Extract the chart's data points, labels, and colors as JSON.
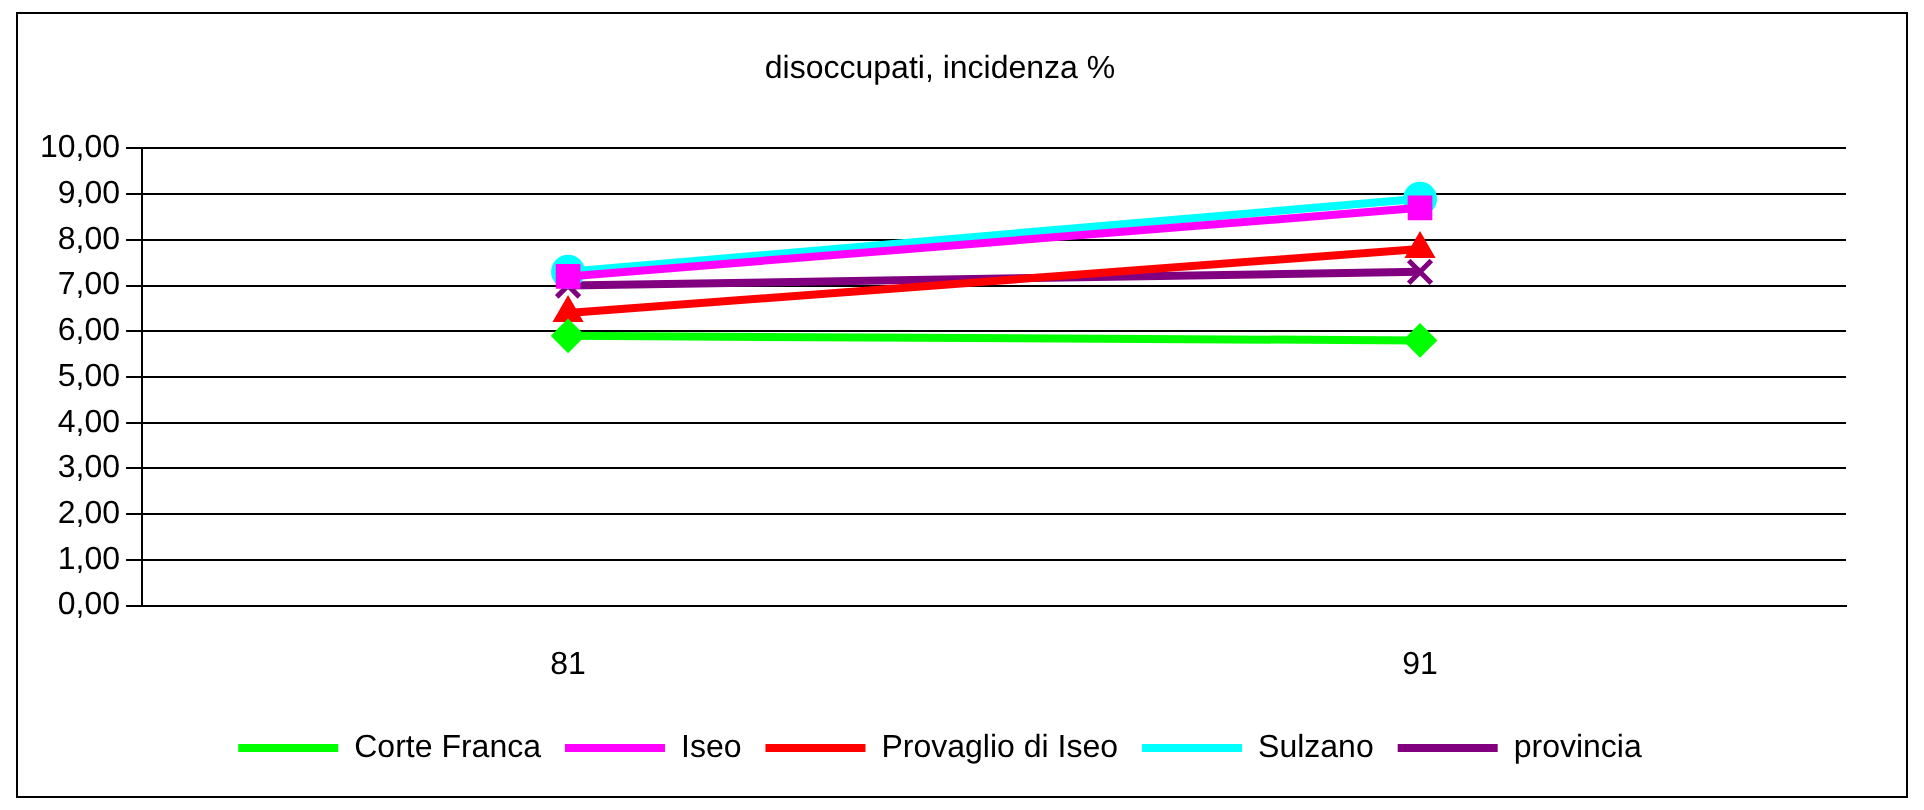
{
  "chart_data": {
    "type": "line",
    "title": "disoccupati, incidenza %",
    "categories": [
      "81",
      "91"
    ],
    "series": [
      {
        "name": "Corte Franca",
        "color": "#00ff00",
        "marker": "diamond",
        "values": [
          5.9,
          5.8
        ]
      },
      {
        "name": "Iseo",
        "color": "#ff00ff",
        "marker": "square",
        "values": [
          7.2,
          8.7
        ]
      },
      {
        "name": "Provaglio di Iseo",
        "color": "#ff0000",
        "marker": "triangle",
        "values": [
          6.4,
          7.8
        ]
      },
      {
        "name": "Sulzano",
        "color": "#00ffff",
        "marker": "circle",
        "values": [
          7.3,
          8.9
        ]
      },
      {
        "name": "provincia",
        "color": "#800080",
        "marker": "cross",
        "values": [
          7.0,
          7.3
        ]
      }
    ],
    "ylim": [
      0,
      10
    ],
    "yticks": [
      {
        "value": 0,
        "label": "0,00"
      },
      {
        "value": 1,
        "label": "1,00"
      },
      {
        "value": 2,
        "label": "2,00"
      },
      {
        "value": 3,
        "label": "3,00"
      },
      {
        "value": 4,
        "label": "4,00"
      },
      {
        "value": 5,
        "label": "5,00"
      },
      {
        "value": 6,
        "label": "6,00"
      },
      {
        "value": 7,
        "label": "7,00"
      },
      {
        "value": 8,
        "label": "8,00"
      },
      {
        "value": 9,
        "label": "9,00"
      },
      {
        "value": 10,
        "label": "10,00"
      }
    ],
    "grid": "y",
    "legend": "bottom",
    "line_style": "solid"
  }
}
